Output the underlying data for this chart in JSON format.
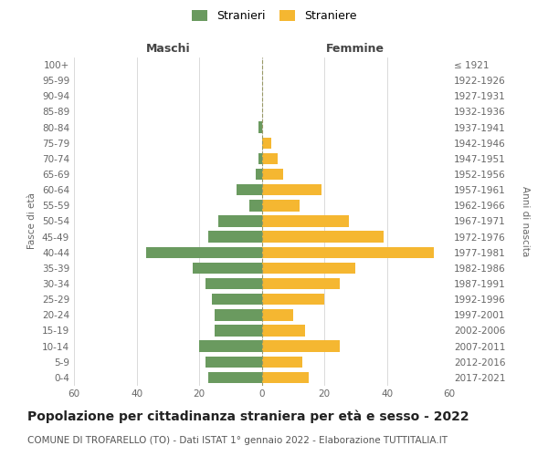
{
  "age_groups": [
    "0-4",
    "5-9",
    "10-14",
    "15-19",
    "20-24",
    "25-29",
    "30-34",
    "35-39",
    "40-44",
    "45-49",
    "50-54",
    "55-59",
    "60-64",
    "65-69",
    "70-74",
    "75-79",
    "80-84",
    "85-89",
    "90-94",
    "95-99",
    "100+"
  ],
  "birth_years": [
    "2017-2021",
    "2012-2016",
    "2007-2011",
    "2002-2006",
    "1997-2001",
    "1992-1996",
    "1987-1991",
    "1982-1986",
    "1977-1981",
    "1972-1976",
    "1967-1971",
    "1962-1966",
    "1957-1961",
    "1952-1956",
    "1947-1951",
    "1942-1946",
    "1937-1941",
    "1932-1936",
    "1927-1931",
    "1922-1926",
    "≤ 1921"
  ],
  "males": [
    17,
    18,
    20,
    15,
    15,
    16,
    18,
    22,
    37,
    17,
    14,
    4,
    8,
    2,
    1,
    0,
    1,
    0,
    0,
    0,
    0
  ],
  "females": [
    15,
    13,
    25,
    14,
    10,
    20,
    25,
    30,
    55,
    39,
    28,
    12,
    19,
    7,
    5,
    3,
    0,
    0,
    0,
    0,
    0
  ],
  "male_color": "#6a9a5f",
  "female_color": "#f5b731",
  "background_color": "#ffffff",
  "grid_color": "#cccccc",
  "xlim": 60,
  "title": "Popolazione per cittadinanza straniera per età e sesso - 2022",
  "subtitle": "COMUNE DI TROFARELLO (TO) - Dati ISTAT 1° gennaio 2022 - Elaborazione TUTTITALIA.IT",
  "ylabel_left": "Fasce di età",
  "ylabel_right": "Anni di nascita",
  "maschi_label": "Maschi",
  "femmine_label": "Femmine",
  "legend_stranieri": "Stranieri",
  "legend_straniere": "Straniere",
  "tick_fontsize": 7.5,
  "title_fontsize": 10,
  "subtitle_fontsize": 7.5
}
